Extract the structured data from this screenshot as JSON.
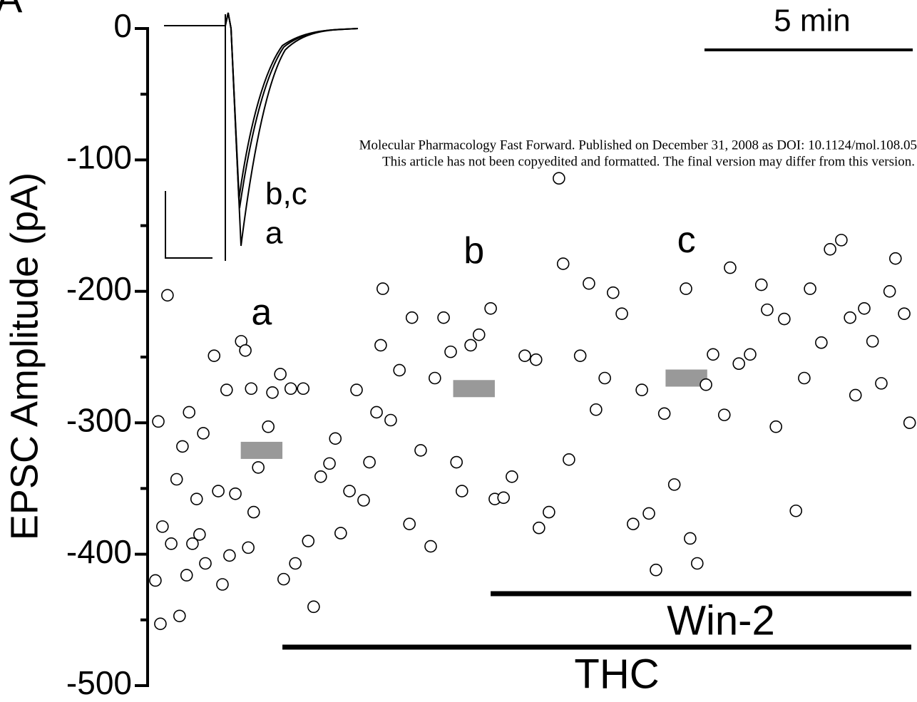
{
  "panel_label": "A",
  "watermark": [
    "Molecular Pharmacology Fast Forward. Published on December 31, 2008 as DOI: 10.1124/mol.108.05",
    "This article has not been copyedited and formatted. The final version may differ from this version."
  ],
  "inset": {
    "labels": [
      "b,c",
      "a"
    ]
  },
  "chart_data": {
    "type": "scatter",
    "y_label": "EPSC Amplitude (pA)",
    "xlim": [
      0,
      18.2
    ],
    "ylim": [
      -500,
      0
    ],
    "yticks": [
      0,
      -100,
      -200,
      -300,
      -400,
      -500
    ],
    "yminor_ticks": [
      -50,
      -150,
      -250,
      -350,
      -450
    ],
    "scale_bar": {
      "value": 5,
      "label": "5 min"
    },
    "marker_color": "#000000",
    "x": [
      0.05,
      0.17,
      0.12,
      0.22,
      0.34,
      0.43,
      0.56,
      0.63,
      0.7,
      0.8,
      0.86,
      0.94,
      1.04,
      1.11,
      1.2,
      1.25,
      1.46,
      1.56,
      1.66,
      1.76,
      1.83,
      1.97,
      2.11,
      2.21,
      2.28,
      2.35,
      2.41,
      2.52,
      2.76,
      2.86,
      3.05,
      3.13,
      3.3,
      3.41,
      3.6,
      3.72,
      3.85,
      4.02,
      4.23,
      4.37,
      4.5,
      4.71,
      4.88,
      5.05,
      5.19,
      5.36,
      5.46,
      5.51,
      5.7,
      5.91,
      6.15,
      6.21,
      6.42,
      6.66,
      6.76,
      6.97,
      7.14,
      7.28,
      7.41,
      7.62,
      7.82,
      8.1,
      8.2,
      8.41,
      8.61,
      8.92,
      9.19,
      9.26,
      9.5,
      9.74,
      9.84,
      9.98,
      10.25,
      10.46,
      10.63,
      10.84,
      11.04,
      11.25,
      11.52,
      11.73,
      11.9,
      12.07,
      12.27,
      12.51,
      12.79,
      12.89,
      13.06,
      13.27,
      13.44,
      13.71,
      13.85,
      14.06,
      14.33,
      14.6,
      14.74,
      14.95,
      15.15,
      15.43,
      15.63,
      15.77,
      16.04,
      16.25,
      16.52,
      16.73,
      16.86,
      17.07,
      17.27,
      17.48,
      17.68,
      17.82,
      18.03,
      18.16
    ],
    "values": [
      -420,
      -453,
      -299,
      -379,
      -203,
      -392,
      -343,
      -447,
      -318,
      -416,
      -292,
      -392,
      -358,
      -385,
      -308,
      -407,
      -249,
      -352,
      -423,
      -275,
      -401,
      -354,
      -238,
      -245,
      -395,
      -274,
      -368,
      -334,
      -303,
      -277,
      -263,
      -419,
      -274,
      -407,
      -274,
      -390,
      -440,
      -341,
      -331,
      -312,
      -384,
      -352,
      -275,
      -359,
      -330,
      -292,
      -241,
      -198,
      -298,
      -260,
      -377,
      -220,
      -321,
      -394,
      -266,
      -220,
      -246,
      -330,
      -352,
      -241,
      -233,
      -213,
      -358,
      -357,
      -341,
      -249,
      -252,
      -380,
      -368,
      -114,
      -179,
      -328,
      -249,
      -194,
      -290,
      -266,
      -201,
      -217,
      -377,
      -275,
      -369,
      -412,
      -293,
      -347,
      -198,
      -388,
      -407,
      -271,
      -248,
      -294,
      -182,
      -255,
      -248,
      -195,
      -214,
      -303,
      -221,
      -367,
      -266,
      -198,
      -239,
      -168,
      -161,
      -220,
      -279,
      -213,
      -238,
      -270,
      -200,
      -175,
      -217,
      -300
    ],
    "averages": [
      {
        "label": "a",
        "start": 2.1,
        "end": 3.1,
        "value": -321
      },
      {
        "label": "b",
        "start": 7.2,
        "end": 8.2,
        "value": -274
      },
      {
        "label": "c",
        "start": 12.3,
        "end": 13.3,
        "value": -266
      }
    ],
    "average_color": "#999999",
    "periods": [
      {
        "label": "Win-2",
        "start": 8.1,
        "end": 18.2
      },
      {
        "label": "THC",
        "start": 3.1,
        "end": 18.2
      }
    ]
  }
}
